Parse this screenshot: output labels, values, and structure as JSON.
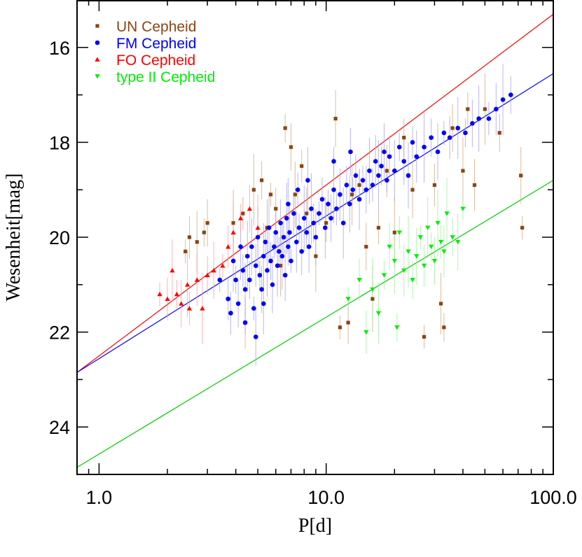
{
  "chart_data": {
    "type": "scatter",
    "title": "",
    "xlabel": "P[d]",
    "ylabel": "Wesenheit[mag]",
    "x_scale": "log",
    "xlim": [
      0.8,
      100.0
    ],
    "ylim": [
      25.0,
      15.0
    ],
    "y_inverted": true,
    "x_tick_labels": [
      "1.0",
      "10.0",
      "100.0"
    ],
    "x_tick_values": [
      1.0,
      10.0,
      100.0
    ],
    "y_tick_labels": [
      "16",
      "18",
      "20",
      "22",
      "24"
    ],
    "y_tick_values": [
      16,
      18,
      20,
      22,
      24
    ],
    "legend_position": "top-left",
    "grid": false,
    "series": [
      {
        "name": "UN Cepheid",
        "color": "#8B4513",
        "marker": "square",
        "error_color": "#D2A679",
        "points": [
          {
            "x": 2.4,
            "y": 20.3
          },
          {
            "x": 2.5,
            "y": 20.0
          },
          {
            "x": 2.7,
            "y": 20.1
          },
          {
            "x": 2.9,
            "y": 19.9
          },
          {
            "x": 3.0,
            "y": 19.7
          },
          {
            "x": 3.9,
            "y": 19.7
          },
          {
            "x": 4.3,
            "y": 19.5
          },
          {
            "x": 4.4,
            "y": 21.8
          },
          {
            "x": 4.8,
            "y": 19.0
          },
          {
            "x": 5.2,
            "y": 18.8
          },
          {
            "x": 5.5,
            "y": 19.8
          },
          {
            "x": 5.7,
            "y": 19.1
          },
          {
            "x": 6.0,
            "y": 19.4
          },
          {
            "x": 6.3,
            "y": 20.6
          },
          {
            "x": 6.6,
            "y": 17.7
          },
          {
            "x": 7.0,
            "y": 18.1
          },
          {
            "x": 7.3,
            "y": 19.1
          },
          {
            "x": 7.8,
            "y": 18.5
          },
          {
            "x": 8.2,
            "y": 19.5
          },
          {
            "x": 9.0,
            "y": 20.4
          },
          {
            "x": 10.0,
            "y": 19.7
          },
          {
            "x": 11.0,
            "y": 17.5
          },
          {
            "x": 11.5,
            "y": 21.9
          },
          {
            "x": 12.5,
            "y": 21.8
          },
          {
            "x": 13.0,
            "y": 19.1
          },
          {
            "x": 14.0,
            "y": 18.9
          },
          {
            "x": 15.0,
            "y": 20.2
          },
          {
            "x": 16.0,
            "y": 21.3
          },
          {
            "x": 17.0,
            "y": 19.8
          },
          {
            "x": 18.5,
            "y": 18.6
          },
          {
            "x": 20.0,
            "y": 19.9
          },
          {
            "x": 22.0,
            "y": 17.9
          },
          {
            "x": 24.0,
            "y": 19.0
          },
          {
            "x": 27.0,
            "y": 22.1
          },
          {
            "x": 30.0,
            "y": 18.9
          },
          {
            "x": 32.0,
            "y": 21.4
          },
          {
            "x": 33.0,
            "y": 21.9
          },
          {
            "x": 36.0,
            "y": 17.7
          },
          {
            "x": 40.0,
            "y": 18.6
          },
          {
            "x": 42.0,
            "y": 17.3
          },
          {
            "x": 45.0,
            "y": 18.9
          },
          {
            "x": 50.0,
            "y": 17.3
          },
          {
            "x": 58.0,
            "y": 17.8
          },
          {
            "x": 72.0,
            "y": 18.7
          },
          {
            "x": 73.0,
            "y": 19.8
          }
        ]
      },
      {
        "name": "FM Cepheid",
        "color": "#0000FF",
        "marker": "circle",
        "error_color": "#A0A0F0",
        "points": [
          {
            "x": 3.4,
            "y": 20.9
          },
          {
            "x": 3.7,
            "y": 21.3
          },
          {
            "x": 3.9,
            "y": 20.5
          },
          {
            "x": 4.0,
            "y": 20.9
          },
          {
            "x": 4.1,
            "y": 21.4
          },
          {
            "x": 4.2,
            "y": 20.2
          },
          {
            "x": 4.3,
            "y": 20.7
          },
          {
            "x": 4.4,
            "y": 21.1
          },
          {
            "x": 4.5,
            "y": 20.4
          },
          {
            "x": 4.6,
            "y": 20.9
          },
          {
            "x": 4.7,
            "y": 20.2
          },
          {
            "x": 4.8,
            "y": 21.5
          },
          {
            "x": 4.9,
            "y": 20.6
          },
          {
            "x": 5.0,
            "y": 20.0
          },
          {
            "x": 5.1,
            "y": 20.8
          },
          {
            "x": 5.2,
            "y": 21.1
          },
          {
            "x": 5.3,
            "y": 20.4
          },
          {
            "x": 5.4,
            "y": 20.1
          },
          {
            "x": 5.5,
            "y": 20.7
          },
          {
            "x": 5.6,
            "y": 19.8
          },
          {
            "x": 5.7,
            "y": 20.5
          },
          {
            "x": 5.8,
            "y": 21.0
          },
          {
            "x": 5.9,
            "y": 20.2
          },
          {
            "x": 6.0,
            "y": 19.9
          },
          {
            "x": 6.1,
            "y": 20.6
          },
          {
            "x": 6.2,
            "y": 20.3
          },
          {
            "x": 6.3,
            "y": 19.7
          },
          {
            "x": 6.4,
            "y": 20.4
          },
          {
            "x": 6.5,
            "y": 20.0
          },
          {
            "x": 6.6,
            "y": 20.8
          },
          {
            "x": 6.7,
            "y": 19.6
          },
          {
            "x": 6.8,
            "y": 20.2
          },
          {
            "x": 6.9,
            "y": 19.9
          },
          {
            "x": 7.0,
            "y": 20.5
          },
          {
            "x": 7.2,
            "y": 19.5
          },
          {
            "x": 7.4,
            "y": 20.1
          },
          {
            "x": 7.6,
            "y": 19.8
          },
          {
            "x": 7.8,
            "y": 20.3
          },
          {
            "x": 8.0,
            "y": 19.6
          },
          {
            "x": 8.2,
            "y": 19.9
          },
          {
            "x": 8.4,
            "y": 20.2
          },
          {
            "x": 8.6,
            "y": 19.4
          },
          {
            "x": 8.8,
            "y": 19.7
          },
          {
            "x": 9.0,
            "y": 20.0
          },
          {
            "x": 9.3,
            "y": 19.5
          },
          {
            "x": 9.6,
            "y": 19.2
          },
          {
            "x": 9.9,
            "y": 19.8
          },
          {
            "x": 10.2,
            "y": 19.3
          },
          {
            "x": 10.5,
            "y": 19.6
          },
          {
            "x": 10.8,
            "y": 19.0
          },
          {
            "x": 11.1,
            "y": 19.4
          },
          {
            "x": 11.5,
            "y": 19.1
          },
          {
            "x": 11.9,
            "y": 19.7
          },
          {
            "x": 12.3,
            "y": 18.9
          },
          {
            "x": 12.7,
            "y": 19.3
          },
          {
            "x": 13.1,
            "y": 19.0
          },
          {
            "x": 13.5,
            "y": 18.7
          },
          {
            "x": 14.0,
            "y": 19.2
          },
          {
            "x": 14.5,
            "y": 18.8
          },
          {
            "x": 15.0,
            "y": 19.0
          },
          {
            "x": 15.5,
            "y": 18.6
          },
          {
            "x": 16.0,
            "y": 18.9
          },
          {
            "x": 16.5,
            "y": 18.4
          },
          {
            "x": 17.0,
            "y": 18.7
          },
          {
            "x": 17.5,
            "y": 18.5
          },
          {
            "x": 18.0,
            "y": 18.2
          },
          {
            "x": 18.5,
            "y": 18.8
          },
          {
            "x": 19.0,
            "y": 18.3
          },
          {
            "x": 20.0,
            "y": 18.6
          },
          {
            "x": 21.0,
            "y": 18.1
          },
          {
            "x": 22.0,
            "y": 18.4
          },
          {
            "x": 23.0,
            "y": 18.7
          },
          {
            "x": 24.0,
            "y": 18.0
          },
          {
            "x": 25.0,
            "y": 18.3
          },
          {
            "x": 27.0,
            "y": 18.1
          },
          {
            "x": 29.0,
            "y": 17.9
          },
          {
            "x": 31.0,
            "y": 18.2
          },
          {
            "x": 33.0,
            "y": 17.8
          },
          {
            "x": 35.0,
            "y": 17.9
          },
          {
            "x": 38.0,
            "y": 17.7
          },
          {
            "x": 41.0,
            "y": 17.8
          },
          {
            "x": 44.0,
            "y": 17.6
          },
          {
            "x": 47.0,
            "y": 17.5
          },
          {
            "x": 52.0,
            "y": 17.5
          },
          {
            "x": 56.0,
            "y": 17.3
          },
          {
            "x": 60.0,
            "y": 17.1
          },
          {
            "x": 65.0,
            "y": 17.0
          },
          {
            "x": 4.9,
            "y": 22.1
          },
          {
            "x": 4.4,
            "y": 21.8
          },
          {
            "x": 3.8,
            "y": 21.6
          },
          {
            "x": 5.3,
            "y": 21.4
          },
          {
            "x": 10.8,
            "y": 18.4
          },
          {
            "x": 12.8,
            "y": 18.2
          },
          {
            "x": 8.3,
            "y": 18.8
          },
          {
            "x": 7.5,
            "y": 19.0
          },
          {
            "x": 6.8,
            "y": 19.3
          }
        ]
      },
      {
        "name": "FO Cepheid",
        "color": "#FF0000",
        "marker": "triangle-up",
        "error_color": "#FF9999",
        "points": [
          {
            "x": 1.85,
            "y": 21.2
          },
          {
            "x": 2.0,
            "y": 21.3
          },
          {
            "x": 2.1,
            "y": 20.7
          },
          {
            "x": 2.2,
            "y": 21.2
          },
          {
            "x": 2.3,
            "y": 21.4
          },
          {
            "x": 2.45,
            "y": 21.0
          },
          {
            "x": 2.5,
            "y": 21.5
          },
          {
            "x": 2.7,
            "y": 20.9
          },
          {
            "x": 2.85,
            "y": 21.5
          },
          {
            "x": 3.0,
            "y": 20.8
          },
          {
            "x": 3.2,
            "y": 20.7
          },
          {
            "x": 3.5,
            "y": 20.6
          },
          {
            "x": 3.7,
            "y": 20.2
          },
          {
            "x": 3.9,
            "y": 19.9
          },
          {
            "x": 4.2,
            "y": 19.6
          },
          {
            "x": 4.6,
            "y": 19.4
          },
          {
            "x": 5.0,
            "y": 19.8
          }
        ]
      },
      {
        "name": "type II Cepheid",
        "color": "#00EE00",
        "marker": "triangle-down",
        "error_color": "#99EE99",
        "points": [
          {
            "x": 12.5,
            "y": 21.3
          },
          {
            "x": 14.0,
            "y": 20.9
          },
          {
            "x": 16.0,
            "y": 21.1
          },
          {
            "x": 18.0,
            "y": 20.8
          },
          {
            "x": 19.0,
            "y": 20.2
          },
          {
            "x": 20.0,
            "y": 20.5
          },
          {
            "x": 21.0,
            "y": 19.9
          },
          {
            "x": 22.0,
            "y": 20.7
          },
          {
            "x": 23.0,
            "y": 20.3
          },
          {
            "x": 24.0,
            "y": 20.9
          },
          {
            "x": 25.0,
            "y": 20.4
          },
          {
            "x": 26.0,
            "y": 20.0
          },
          {
            "x": 27.0,
            "y": 20.6
          },
          {
            "x": 28.0,
            "y": 19.8
          },
          {
            "x": 29.0,
            "y": 20.2
          },
          {
            "x": 30.0,
            "y": 20.5
          },
          {
            "x": 31.0,
            "y": 19.7
          },
          {
            "x": 32.0,
            "y": 20.1
          },
          {
            "x": 33.0,
            "y": 20.3
          },
          {
            "x": 34.0,
            "y": 19.5
          },
          {
            "x": 36.0,
            "y": 20.0
          },
          {
            "x": 38.0,
            "y": 20.1
          },
          {
            "x": 40.0,
            "y": 19.4
          },
          {
            "x": 15.0,
            "y": 22.0
          },
          {
            "x": 17.0,
            "y": 21.6
          },
          {
            "x": 20.5,
            "y": 21.9
          }
        ]
      }
    ],
    "lines": [
      {
        "color": "#FF0000",
        "x": [
          0.8,
          100.0
        ],
        "y": [
          22.85,
          15.3
        ]
      },
      {
        "color": "#0000FF",
        "x": [
          0.8,
          100.0
        ],
        "y": [
          22.85,
          16.55
        ]
      },
      {
        "color": "#00CC00",
        "x": [
          0.8,
          100.0
        ],
        "y": [
          24.85,
          18.8
        ]
      }
    ]
  }
}
